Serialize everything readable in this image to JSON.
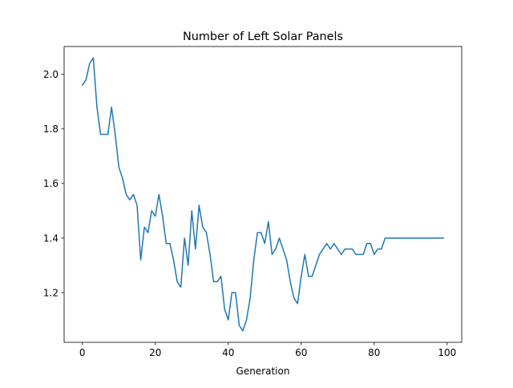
{
  "chart_data": {
    "type": "line",
    "title": "Number of Left Solar Panels",
    "xlabel": "Generation",
    "ylabel": "",
    "xlim": [
      -5,
      104
    ],
    "ylim": [
      1.018,
      2.102
    ],
    "xticks": [
      0,
      20,
      40,
      60,
      80,
      100
    ],
    "xtick_labels": [
      "0",
      "20",
      "40",
      "60",
      "80",
      "100"
    ],
    "yticks": [
      1.2,
      1.4,
      1.6,
      1.8,
      2.0
    ],
    "ytick_labels": [
      "1.2",
      "1.4",
      "1.6",
      "1.8",
      "2.0"
    ],
    "grid": false,
    "legend": null,
    "series": [
      {
        "color": "#1f77b4",
        "x": [
          0,
          1,
          2,
          3,
          4,
          5,
          6,
          7,
          8,
          9,
          10,
          11,
          12,
          13,
          14,
          15,
          16,
          17,
          18,
          19,
          20,
          21,
          22,
          23,
          24,
          25,
          26,
          27,
          28,
          29,
          30,
          31,
          32,
          33,
          34,
          35,
          36,
          37,
          38,
          39,
          40,
          41,
          42,
          43,
          44,
          45,
          46,
          47,
          48,
          49,
          50,
          51,
          52,
          53,
          54,
          55,
          56,
          57,
          58,
          59,
          60,
          61,
          62,
          63,
          64,
          65,
          66,
          67,
          68,
          69,
          70,
          71,
          72,
          73,
          74,
          75,
          76,
          77,
          78,
          79,
          80,
          81,
          82,
          83,
          84,
          85,
          86,
          87,
          88,
          89,
          90,
          91,
          92,
          93,
          94,
          95,
          96,
          97,
          98,
          99
        ],
        "values": [
          1.96,
          1.98,
          2.04,
          2.06,
          1.88,
          1.78,
          1.78,
          1.78,
          1.88,
          1.78,
          1.66,
          1.62,
          1.56,
          1.54,
          1.56,
          1.52,
          1.32,
          1.44,
          1.42,
          1.5,
          1.48,
          1.56,
          1.48,
          1.38,
          1.38,
          1.32,
          1.24,
          1.22,
          1.4,
          1.3,
          1.5,
          1.36,
          1.52,
          1.44,
          1.42,
          1.34,
          1.24,
          1.24,
          1.26,
          1.14,
          1.1,
          1.2,
          1.2,
          1.08,
          1.06,
          1.1,
          1.18,
          1.32,
          1.42,
          1.42,
          1.38,
          1.46,
          1.34,
          1.36,
          1.4,
          1.36,
          1.32,
          1.24,
          1.18,
          1.16,
          1.26,
          1.34,
          1.26,
          1.26,
          1.3,
          1.34,
          1.36,
          1.38,
          1.36,
          1.38,
          1.36,
          1.34,
          1.36,
          1.36,
          1.36,
          1.34,
          1.34,
          1.34,
          1.38,
          1.38,
          1.34,
          1.36,
          1.36,
          1.4,
          1.4,
          1.4,
          1.4,
          1.4,
          1.4,
          1.4,
          1.4,
          1.4,
          1.4,
          1.4,
          1.4,
          1.4,
          1.4,
          1.4,
          1.4,
          1.4
        ]
      }
    ]
  }
}
